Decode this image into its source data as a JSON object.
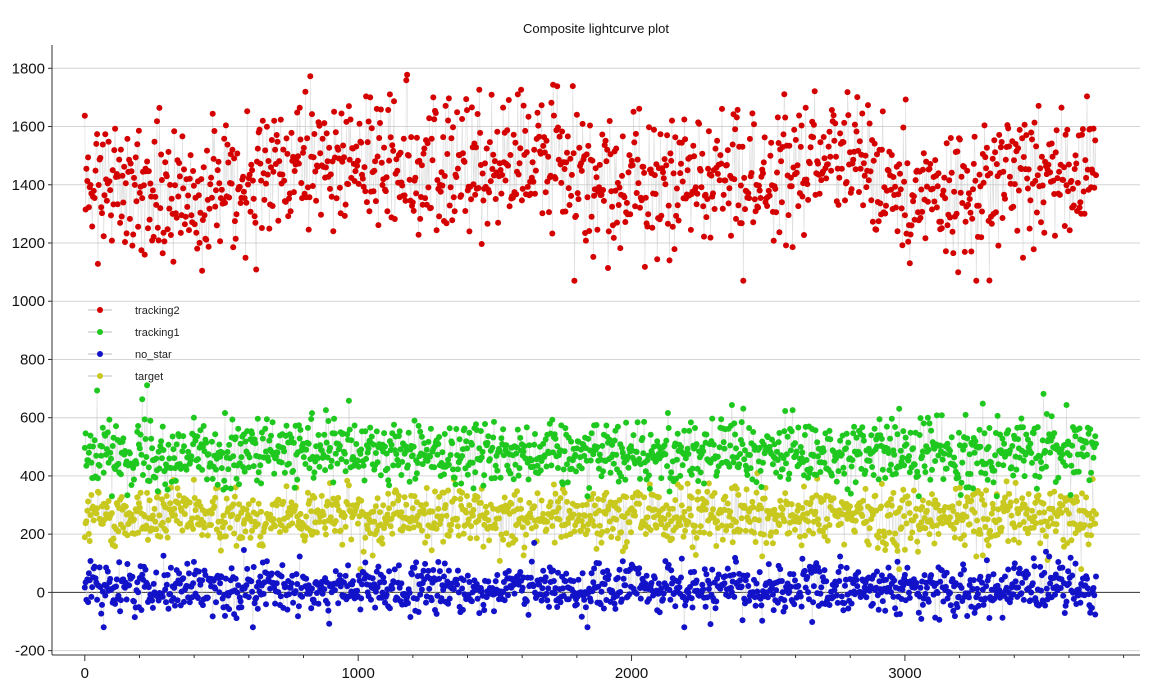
{
  "chart_data": {
    "type": "scatter",
    "title": "Composite lightcurve plot",
    "xlabel": "",
    "ylabel": "",
    "xlim": [
      -120,
      3860
    ],
    "ylim": [
      -215,
      1880
    ],
    "xticks": [
      0,
      1000,
      2000,
      3000
    ],
    "yticks": [
      -200,
      0,
      200,
      400,
      600,
      800,
      1000,
      1200,
      1400,
      1600,
      1800
    ],
    "grid": "horizontal",
    "zero_line": true,
    "legend_placement": "left-middle",
    "markers_connected": true,
    "n_points_per_series": 3700,
    "series": [
      {
        "name": "tracking2",
        "color": "#d40000",
        "base": [
          [
            0,
            1440
          ],
          [
            300,
            1350
          ],
          [
            700,
            1420
          ],
          [
            1000,
            1500
          ],
          [
            1300,
            1440
          ],
          [
            1700,
            1500
          ],
          [
            1900,
            1380
          ],
          [
            2200,
            1430
          ],
          [
            2500,
            1400
          ],
          [
            2700,
            1490
          ],
          [
            3000,
            1390
          ],
          [
            3200,
            1360
          ],
          [
            3500,
            1460
          ],
          [
            3700,
            1450
          ]
        ],
        "spread": 110,
        "min": 1070,
        "max": 1790
      },
      {
        "name": "tracking1",
        "color": "#1ec81e",
        "base": [
          [
            0,
            480
          ],
          [
            500,
            475
          ],
          [
            1000,
            480
          ],
          [
            1500,
            480
          ],
          [
            2000,
            485
          ],
          [
            2500,
            480
          ],
          [
            3000,
            480
          ],
          [
            3700,
            490
          ]
        ],
        "spread": 55,
        "min": 330,
        "max": 740
      },
      {
        "name": "no_star",
        "color": "#1212c8",
        "base": [
          [
            0,
            20
          ],
          [
            1000,
            10
          ],
          [
            2000,
            15
          ],
          [
            3000,
            10
          ],
          [
            3700,
            20
          ]
        ],
        "spread": 42,
        "min": -120,
        "max": 170
      },
      {
        "name": "target",
        "color": "#c8c81e",
        "base": [
          [
            0,
            260
          ],
          [
            1000,
            265
          ],
          [
            2000,
            265
          ],
          [
            3000,
            260
          ],
          [
            3700,
            265
          ]
        ],
        "spread": 52,
        "min": 80,
        "max": 440
      }
    ]
  },
  "legend_order": [
    "tracking2",
    "tracking1",
    "no_star",
    "target"
  ]
}
